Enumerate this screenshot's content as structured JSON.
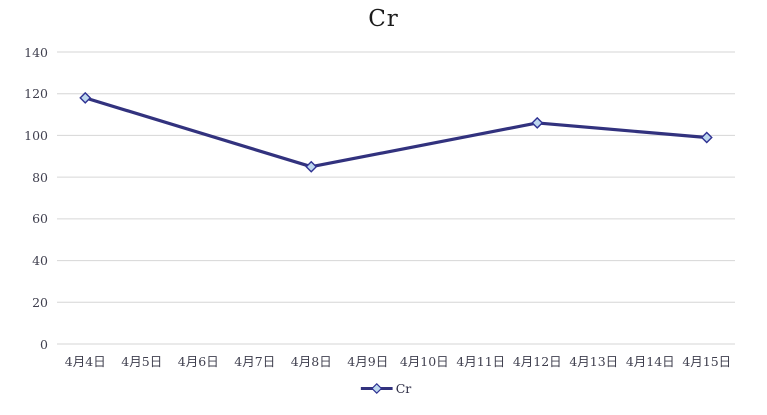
{
  "chart": {
    "title": "Cr",
    "legend": {
      "label": "Cr",
      "marker": "line-diamond-icon"
    },
    "colors": {
      "line": "#32327E",
      "marker_fill": "#BDD7EE",
      "marker_stroke": "#2E3192",
      "gridline": "#D6D6D6",
      "axis_label": "#3F3F4E",
      "title": "#1B1B1B"
    }
  },
  "chart_data": {
    "type": "line",
    "title": "Cr",
    "categories": [
      "4月4日",
      "4月5日",
      "4月6日",
      "4月7日",
      "4月8日",
      "4月9日",
      "4月10日",
      "4月11日",
      "4月12日",
      "4月13日",
      "4月14日",
      "4月15日"
    ],
    "series": [
      {
        "name": "Cr",
        "marker": "diamond",
        "values": [
          118,
          null,
          null,
          null,
          85,
          null,
          null,
          null,
          106,
          null,
          null,
          99
        ]
      }
    ],
    "ylim": [
      0,
      140
    ],
    "ytick_interval": 20,
    "yticks": [
      0,
      20,
      40,
      60,
      80,
      100,
      120,
      140
    ],
    "grid": "horizontal",
    "legend_position": "bottom",
    "gap_handling": "connected-across-empty-categories"
  }
}
